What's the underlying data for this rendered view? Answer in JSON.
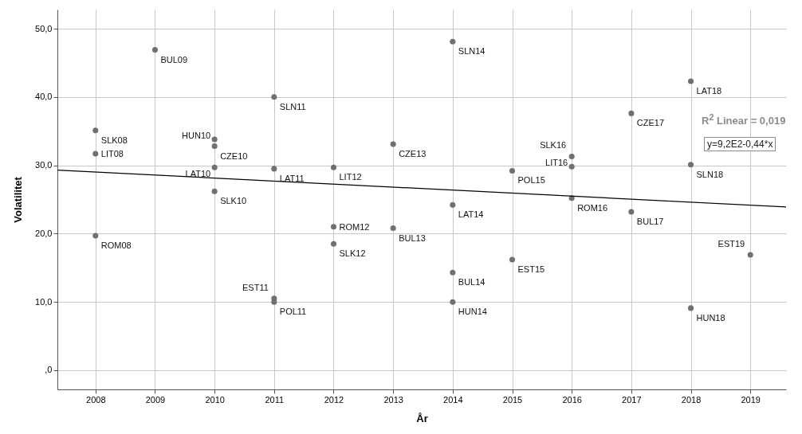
{
  "chart_data": {
    "type": "scatter",
    "xlabel": "År",
    "ylabel": "Volatilitet",
    "xlim": [
      2007.36,
      2019.6
    ],
    "ylim": [
      -2.8,
      52.8
    ],
    "xticks": [
      2008,
      2009,
      2010,
      2011,
      2012,
      2013,
      2014,
      2015,
      2016,
      2017,
      2018,
      2019
    ],
    "yticks": [
      {
        "value": 0,
        "label": ",0"
      },
      {
        "value": 10,
        "label": "10,0"
      },
      {
        "value": 20,
        "label": "20,0"
      },
      {
        "value": 30,
        "label": "30,0"
      },
      {
        "value": 40,
        "label": "40,0"
      },
      {
        "value": 50,
        "label": "50,0"
      }
    ],
    "grid": true,
    "series": [
      {
        "marker": "circle",
        "color": "#707070",
        "x": [
          2008,
          2008,
          2008,
          2009,
          2010,
          2010,
          2010,
          2010,
          2011,
          2011,
          2011,
          2011,
          2012,
          2012,
          2012,
          2013,
          2013,
          2014,
          2014,
          2014,
          2014,
          2015,
          2015,
          2016,
          2016,
          2016,
          2017,
          2017,
          2018,
          2018,
          2018,
          2019
        ],
        "values": [
          35.1,
          31.7,
          19.7,
          46.9,
          33.8,
          32.8,
          29.7,
          26.2,
          40.0,
          29.5,
          10.5,
          10.0,
          29.7,
          21.0,
          18.5,
          33.1,
          20.8,
          48.1,
          24.2,
          14.3,
          10.0,
          29.2,
          16.2,
          31.3,
          29.8,
          25.2,
          37.6,
          23.2,
          42.3,
          30.1,
          9.1,
          16.9
        ]
      },
      {
        "type": "line",
        "color": "#000000",
        "x": [
          2007.36,
          2019.6
        ],
        "values": [
          29.3,
          23.9
        ]
      }
    ],
    "annotations": [
      {
        "text": "SLK08",
        "x": 2008,
        "y": 35.1
      },
      {
        "text": "LIT08",
        "x": 2008,
        "y": 31.7
      },
      {
        "text": "ROM08",
        "x": 2008,
        "y": 19.7
      },
      {
        "text": "BUL09",
        "x": 2009,
        "y": 46.9
      },
      {
        "text": "HUN10",
        "x": 2010,
        "y": 33.8
      },
      {
        "text": "CZE10",
        "x": 2010,
        "y": 32.8
      },
      {
        "text": "LAT10",
        "x": 2010,
        "y": 29.7
      },
      {
        "text": "SLK10",
        "x": 2010,
        "y": 26.2
      },
      {
        "text": "SLN11",
        "x": 2011,
        "y": 40.0
      },
      {
        "text": "LAT11",
        "x": 2011,
        "y": 29.5
      },
      {
        "text": "EST11",
        "x": 2011,
        "y": 10.5
      },
      {
        "text": "POL11",
        "x": 2011,
        "y": 10.0
      },
      {
        "text": "LIT12",
        "x": 2012,
        "y": 29.7
      },
      {
        "text": "ROM12",
        "x": 2012,
        "y": 21.0
      },
      {
        "text": "SLK12",
        "x": 2012,
        "y": 18.5
      },
      {
        "text": "CZE13",
        "x": 2013,
        "y": 33.1
      },
      {
        "text": "BUL13",
        "x": 2013,
        "y": 20.8
      },
      {
        "text": "SLN14",
        "x": 2014,
        "y": 48.1
      },
      {
        "text": "LAT14",
        "x": 2014,
        "y": 24.2
      },
      {
        "text": "BUL14",
        "x": 2014,
        "y": 14.3
      },
      {
        "text": "HUN14",
        "x": 2014,
        "y": 10.0
      },
      {
        "text": "POL15",
        "x": 2015,
        "y": 29.2
      },
      {
        "text": "EST15",
        "x": 2015,
        "y": 16.2
      },
      {
        "text": "SLK16",
        "x": 2016,
        "y": 31.3
      },
      {
        "text": "LIT16",
        "x": 2016,
        "y": 29.8
      },
      {
        "text": "ROM16",
        "x": 2016,
        "y": 25.2
      },
      {
        "text": "CZE17",
        "x": 2017,
        "y": 37.6
      },
      {
        "text": "BUL17",
        "x": 2017,
        "y": 23.2
      },
      {
        "text": "LAT18",
        "x": 2018,
        "y": 42.3
      },
      {
        "text": "SLN18",
        "x": 2018,
        "y": 30.1
      },
      {
        "text": "HUN18",
        "x": 2018,
        "y": 9.1
      },
      {
        "text": "EST19",
        "x": 2019,
        "y": 16.9
      },
      "R$^{2}$ Linear = 0,019",
      "y=9,2E2-0,44*x"
    ]
  }
}
